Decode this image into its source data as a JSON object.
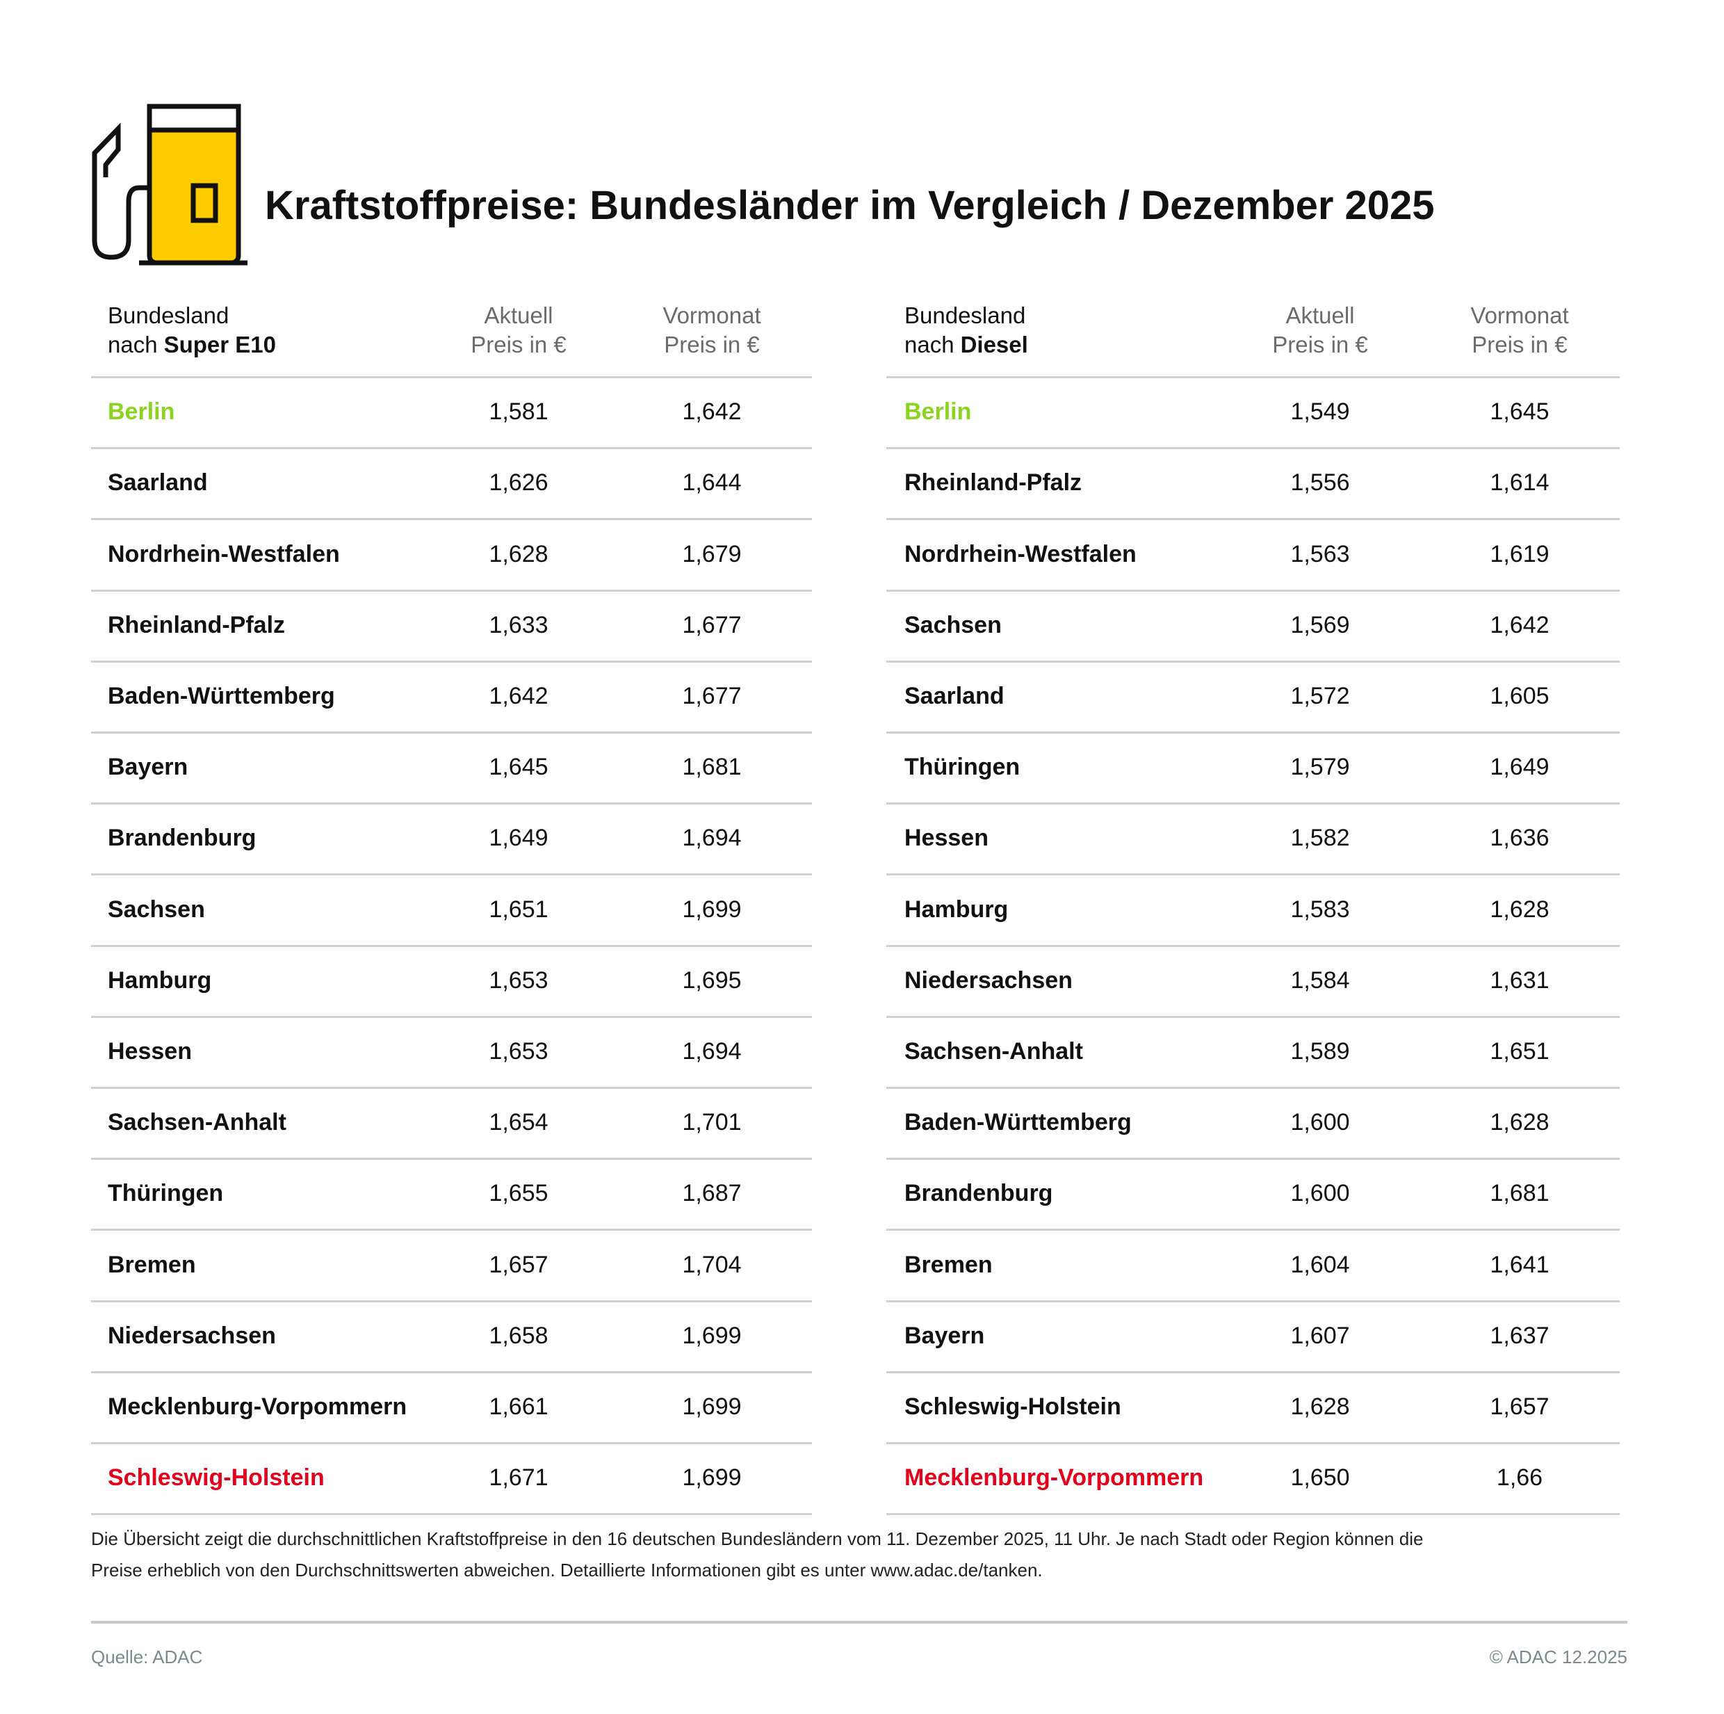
{
  "title": "Kraftstoffpreise: Bundesländer im Vergleich / Dezember 2025",
  "tables": [
    {
      "header": {
        "line1": "Bundesland",
        "prefix": "nach",
        "fuel": "Super E10",
        "col1": [
          "Aktuell",
          "Preis in €"
        ],
        "col2": [
          "Vormonat",
          "Preis in €"
        ]
      },
      "rows": [
        [
          "Berlin",
          "1,581",
          "1,642"
        ],
        [
          "Saarland",
          "1,626",
          "1,644"
        ],
        [
          "Nordrhein-Westfalen",
          "1,628",
          "1,679"
        ],
        [
          "Rheinland-Pfalz",
          "1,633",
          "1,677"
        ],
        [
          "Baden-Württemberg",
          "1,642",
          "1,677"
        ],
        [
          "Bayern",
          "1,645",
          "1,681"
        ],
        [
          "Brandenburg",
          "1,649",
          "1,694"
        ],
        [
          "Sachsen",
          "1,651",
          "1,699"
        ],
        [
          "Hamburg",
          "1,653",
          "1,695"
        ],
        [
          "Hessen",
          "1,653",
          "1,694"
        ],
        [
          "Sachsen-Anhalt",
          "1,654",
          "1,701"
        ],
        [
          "Thüringen",
          "1,655",
          "1,687"
        ],
        [
          "Bremen",
          "1,657",
          "1,704"
        ],
        [
          "Niedersachsen",
          "1,658",
          "1,699"
        ],
        [
          "Mecklenburg-Vorpommern",
          "1,661",
          "1,699"
        ],
        [
          "Schleswig-Holstein",
          "1,671",
          "1,699"
        ]
      ]
    },
    {
      "header": {
        "line1": "Bundesland",
        "prefix": "nach",
        "fuel": "Diesel",
        "col1": [
          "Aktuell",
          "Preis in €"
        ],
        "col2": [
          "Vormonat",
          "Preis in €"
        ]
      },
      "rows": [
        [
          "Berlin",
          "1,549",
          "1,645"
        ],
        [
          "Rheinland-Pfalz",
          "1,556",
          "1,614"
        ],
        [
          "Nordrhein-Westfalen",
          "1,563",
          "1,619"
        ],
        [
          "Sachsen",
          "1,569",
          "1,642"
        ],
        [
          "Saarland",
          "1,572",
          "1,605"
        ],
        [
          "Thüringen",
          "1,579",
          "1,649"
        ],
        [
          "Hessen",
          "1,582",
          "1,636"
        ],
        [
          "Hamburg",
          "1,583",
          "1,628"
        ],
        [
          "Niedersachsen",
          "1,584",
          "1,631"
        ],
        [
          "Sachsen-Anhalt",
          "1,589",
          "1,651"
        ],
        [
          "Baden-Württemberg",
          "1,600",
          "1,628"
        ],
        [
          "Brandenburg",
          "1,600",
          "1,681"
        ],
        [
          "Bremen",
          "1,604",
          "1,641"
        ],
        [
          "Bayern",
          "1,607",
          "1,637"
        ],
        [
          "Schleswig-Holstein",
          "1,628",
          "1,657"
        ],
        [
          "Mecklenburg-Vorpommern",
          "1,650",
          "1,66"
        ]
      ]
    }
  ],
  "footnote": [
    "Die Übersicht zeigt die durchschnittlichen Kraftstoffpreise in den 16 deutschen Bundesländern vom 11. Dezember 2025, 11 Uhr. Je nach Stadt oder Region können die",
    "Preise erheblich von den Durchschnittswerten abweichen. Detaillierte Informationen gibt es unter www.adac.de/tanken."
  ],
  "source": "Quelle: ADAC",
  "copyright": "© ADAC 12.2025"
}
